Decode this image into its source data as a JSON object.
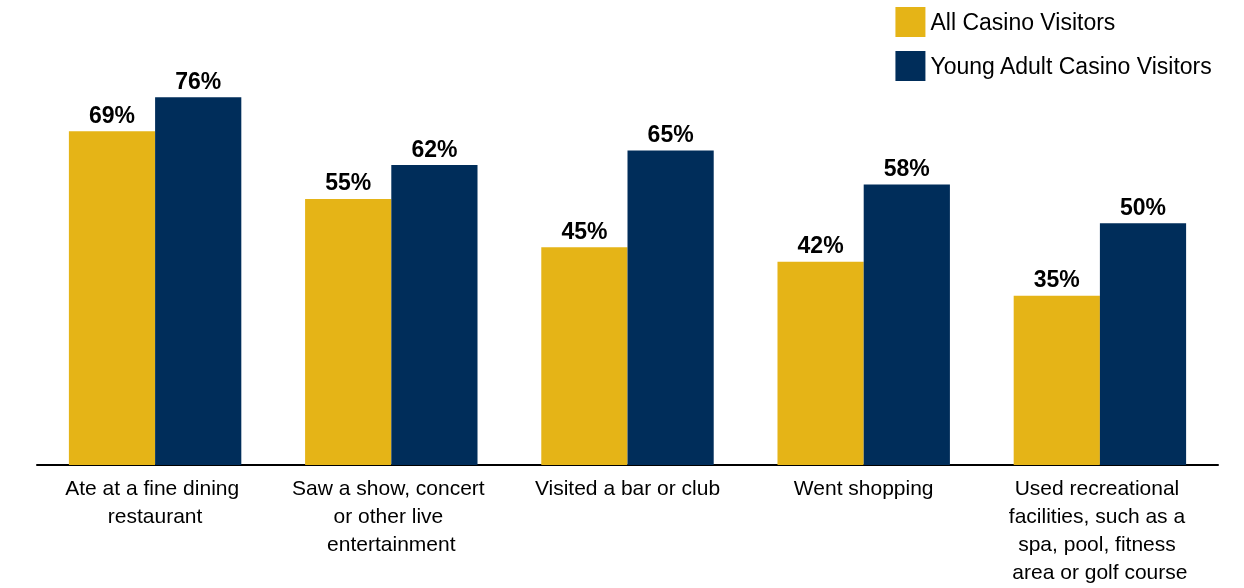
{
  "chart_data": {
    "type": "bar",
    "categories": [
      "Ate at a fine dining restaurant",
      "Saw a show, concert or other live entertainment",
      "Visited a bar or club",
      "Went shopping",
      "Used recreational facilities, such as a spa, pool, fitness area or golf course"
    ],
    "series": [
      {
        "name": "All Casino Visitors",
        "color": "#e5b417",
        "values": [
          69,
          55,
          45,
          42,
          35
        ],
        "value_labels": [
          "69%",
          "55%",
          "45%",
          "42%",
          "35%"
        ]
      },
      {
        "name": "Young Adult Casino Visitors",
        "color": "#002d5a",
        "values": [
          76,
          62,
          65,
          58,
          50
        ],
        "value_labels": [
          "76%",
          "62%",
          "65%",
          "58%",
          "50%"
        ]
      }
    ],
    "legend": "top right"
  }
}
